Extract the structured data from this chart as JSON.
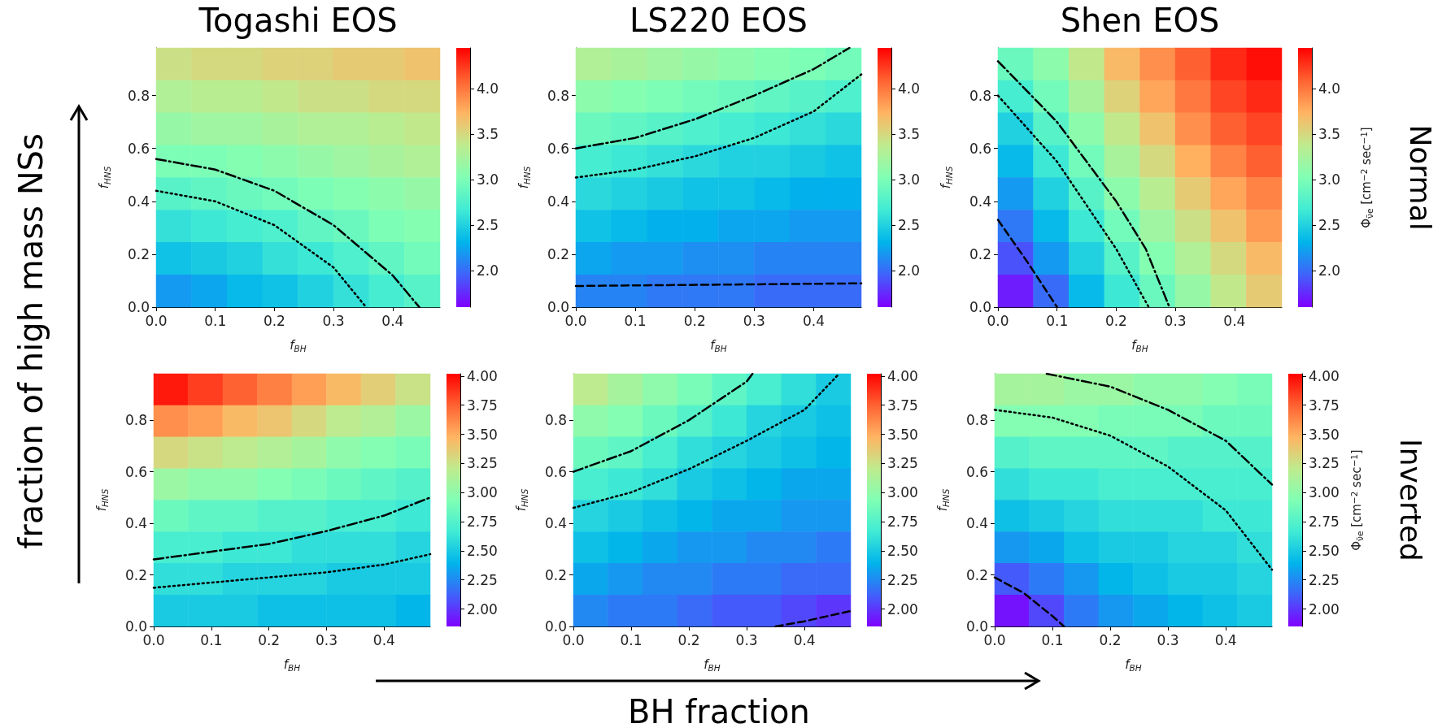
{
  "chart_data": [
    {
      "type": "heatmap",
      "title": "Togashi EOS",
      "xlabel": "f$_{BH}$",
      "ylabel": "f$_{HNS}$",
      "xlim": [
        0,
        0.48
      ],
      "ylim": [
        0,
        0.98
      ],
      "xticks": [
        {
          "value": 0,
          "label": "0.0"
        },
        {
          "value": 0.1,
          "label": "0.1"
        },
        {
          "value": 0.2,
          "label": "0.2"
        },
        {
          "value": 0.3,
          "label": "0.3"
        },
        {
          "value": 0.4,
          "label": "0.4"
        }
      ],
      "yticks": [
        {
          "value": 0,
          "label": "0.0"
        },
        {
          "value": 0.2,
          "label": "0.2"
        },
        {
          "value": 0.4,
          "label": "0.4"
        },
        {
          "value": 0.6,
          "label": "0.6"
        },
        {
          "value": 0.8,
          "label": "0.8"
        }
      ],
      "clim": [
        1.6,
        4.45
      ],
      "cticks": [
        {
          "value": 2,
          "label": "2.0"
        },
        2.5,
        {
          "value": 3,
          "label": "3.0"
        },
        3.5,
        {
          "value": 4,
          "label": "4.0"
        }
      ],
      "cells": [
        [
          3.45,
          3.5,
          3.5,
          3.55,
          3.55,
          3.6,
          3.6,
          3.65
        ],
        [
          3.3,
          3.35,
          3.35,
          3.4,
          3.45,
          3.45,
          3.5,
          3.5
        ],
        [
          3.15,
          3.2,
          3.2,
          3.25,
          3.3,
          3.3,
          3.35,
          3.4
        ],
        [
          3.0,
          3.0,
          3.05,
          3.1,
          3.15,
          3.2,
          3.25,
          3.3
        ],
        [
          2.8,
          2.85,
          2.9,
          2.95,
          3.0,
          3.05,
          3.1,
          3.15
        ],
        [
          2.6,
          2.65,
          2.7,
          2.75,
          2.85,
          2.9,
          3.0,
          3.05
        ],
        [
          2.4,
          2.45,
          2.5,
          2.6,
          2.65,
          2.75,
          2.85,
          2.95
        ],
        [
          2.2,
          2.25,
          2.35,
          2.4,
          2.5,
          2.6,
          2.7,
          2.8
        ]
      ],
      "series": [
        {
          "type": "line",
          "color": "#000000",
          "line_style": "dashdot",
          "x": [
            0,
            0.1,
            0.2,
            0.3,
            0.4,
            0.445
          ],
          "values": [
            0.56,
            0.52,
            0.44,
            0.31,
            0.12,
            0
          ]
        },
        {
          "type": "line",
          "color": "#000000",
          "line_style": "dotted",
          "x": [
            0,
            0.1,
            0.2,
            0.3,
            0.355
          ],
          "values": [
            0.44,
            0.4,
            0.31,
            0.15,
            0
          ]
        }
      ]
    },
    {
      "type": "heatmap",
      "title": "LS220 EOS",
      "xlabel": "f$_{BH}$",
      "ylabel": "f$_{HNS}$",
      "xlim": [
        0,
        0.48
      ],
      "ylim": [
        0,
        0.98
      ],
      "xticks": [
        {
          "value": 0,
          "label": "0.0"
        },
        {
          "value": 0.1,
          "label": "0.1"
        },
        {
          "value": 0.2,
          "label": "0.2"
        },
        {
          "value": 0.3,
          "label": "0.3"
        },
        {
          "value": 0.4,
          "label": "0.4"
        }
      ],
      "yticks": [
        {
          "value": 0,
          "label": "0.0"
        },
        {
          "value": 0.2,
          "label": "0.2"
        },
        {
          "value": 0.4,
          "label": "0.4"
        },
        {
          "value": 0.6,
          "label": "0.6"
        },
        {
          "value": 0.8,
          "label": "0.8"
        }
      ],
      "clim": [
        1.6,
        4.45
      ],
      "cticks": [
        {
          "value": 2,
          "label": "2.0"
        },
        2.5,
        {
          "value": 3,
          "label": "3.0"
        },
        3.5,
        {
          "value": 4,
          "label": "4.0"
        }
      ],
      "cells": [
        [
          3.3,
          3.25,
          3.2,
          3.15,
          3.1,
          3.05,
          3.0,
          2.95
        ],
        [
          3.1,
          3.05,
          3.0,
          2.95,
          2.9,
          2.85,
          2.8,
          2.75
        ],
        [
          2.9,
          2.85,
          2.8,
          2.75,
          2.7,
          2.65,
          2.6,
          2.55
        ],
        [
          2.7,
          2.65,
          2.6,
          2.55,
          2.5,
          2.5,
          2.45,
          2.4
        ],
        [
          2.55,
          2.5,
          2.45,
          2.4,
          2.4,
          2.35,
          2.3,
          2.3
        ],
        [
          2.4,
          2.35,
          2.3,
          2.3,
          2.25,
          2.25,
          2.2,
          2.2
        ],
        [
          2.25,
          2.2,
          2.2,
          2.15,
          2.15,
          2.1,
          2.1,
          2.1
        ],
        [
          2.1,
          2.1,
          2.05,
          2.05,
          2.05,
          2.0,
          2.0,
          2.0
        ]
      ],
      "series": [
        {
          "type": "line",
          "color": "#000000",
          "line_style": "dashdot",
          "x": [
            0,
            0.1,
            0.2,
            0.3,
            0.4,
            0.46
          ],
          "values": [
            0.6,
            0.64,
            0.71,
            0.8,
            0.9,
            0.98
          ]
        },
        {
          "type": "line",
          "color": "#000000",
          "line_style": "dotted",
          "x": [
            0,
            0.1,
            0.2,
            0.3,
            0.4,
            0.48
          ],
          "values": [
            0.49,
            0.52,
            0.57,
            0.64,
            0.74,
            0.88
          ]
        },
        {
          "type": "line",
          "color": "#000000",
          "line_style": "dashed",
          "x": [
            0,
            0.48
          ],
          "values": [
            0.08,
            0.09
          ]
        }
      ]
    },
    {
      "type": "heatmap",
      "title": "Shen EOS",
      "xlabel": "f$_{BH}$",
      "ylabel": "f$_{HNS}$",
      "clabel": "Φ$_{ν̄e}$ [cm$^{−2}$ sec$^{−1}$]",
      "annotations": [
        "Normal"
      ],
      "xlim": [
        0,
        0.48
      ],
      "ylim": [
        0,
        0.98
      ],
      "xticks": [
        {
          "value": 0,
          "label": "0.0"
        },
        {
          "value": 0.1,
          "label": "0.1"
        },
        {
          "value": 0.2,
          "label": "0.2"
        },
        {
          "value": 0.3,
          "label": "0.3"
        },
        {
          "value": 0.4,
          "label": "0.4"
        }
      ],
      "yticks": [
        {
          "value": 0,
          "label": "0.0"
        },
        {
          "value": 0.2,
          "label": "0.2"
        },
        {
          "value": 0.4,
          "label": "0.4"
        },
        {
          "value": 0.6,
          "label": "0.6"
        },
        {
          "value": 0.8,
          "label": "0.8"
        }
      ],
      "clim": [
        1.6,
        4.45
      ],
      "cticks": [
        {
          "value": 2,
          "label": "2.0"
        },
        2.5,
        {
          "value": 3,
          "label": "3.0"
        },
        3.5,
        {
          "value": 4,
          "label": "4.0"
        }
      ],
      "cells": [
        [
          2.9,
          3.1,
          3.4,
          3.7,
          3.9,
          4.1,
          4.3,
          4.4
        ],
        [
          2.7,
          2.95,
          3.25,
          3.55,
          3.8,
          4.0,
          4.2,
          4.3
        ],
        [
          2.5,
          2.8,
          3.1,
          3.4,
          3.65,
          3.9,
          4.1,
          4.2
        ],
        [
          2.35,
          2.65,
          2.95,
          3.25,
          3.5,
          3.75,
          3.95,
          4.1
        ],
        [
          2.2,
          2.5,
          2.8,
          3.1,
          3.35,
          3.6,
          3.8,
          3.95
        ],
        [
          2.05,
          2.35,
          2.65,
          2.95,
          3.2,
          3.45,
          3.65,
          3.85
        ],
        [
          1.9,
          2.2,
          2.5,
          2.8,
          3.05,
          3.3,
          3.5,
          3.7
        ],
        [
          1.7,
          2.0,
          2.35,
          2.65,
          2.9,
          3.15,
          3.4,
          3.6
        ]
      ],
      "series": [
        {
          "type": "line",
          "color": "#000000",
          "line_style": "dashdot",
          "x": [
            0,
            0.1,
            0.2,
            0.25,
            0.29
          ],
          "values": [
            0.93,
            0.7,
            0.4,
            0.22,
            0
          ]
        },
        {
          "type": "line",
          "color": "#000000",
          "line_style": "dotted",
          "x": [
            0,
            0.1,
            0.2,
            0.255
          ],
          "values": [
            0.8,
            0.55,
            0.22,
            0
          ]
        },
        {
          "type": "line",
          "color": "#000000",
          "line_style": "dashed",
          "x": [
            0,
            0.05,
            0.1
          ],
          "values": [
            0.33,
            0.17,
            0
          ]
        }
      ]
    },
    {
      "type": "heatmap",
      "xlabel": "f$_{BH}$",
      "ylabel": "f$_{HNS}$",
      "annotations": [
        "fraction of high mass NSs"
      ],
      "xlim": [
        0,
        0.48
      ],
      "ylim": [
        0,
        0.98
      ],
      "xticks": [
        {
          "value": 0,
          "label": "0.0"
        },
        {
          "value": 0.1,
          "label": "0.1"
        },
        {
          "value": 0.2,
          "label": "0.2"
        },
        {
          "value": 0.3,
          "label": "0.3"
        },
        {
          "value": 0.4,
          "label": "0.4"
        }
      ],
      "yticks": [
        {
          "value": 0,
          "label": "0.0"
        },
        {
          "value": 0.2,
          "label": "0.2"
        },
        {
          "value": 0.4,
          "label": "0.4"
        },
        {
          "value": 0.6,
          "label": "0.6"
        },
        {
          "value": 0.8,
          "label": "0.8"
        }
      ],
      "clim": [
        1.85,
        4.02
      ],
      "cticks": [
        {
          "value": 2,
          "label": "2.00"
        },
        2.25,
        {
          "value": 2.5,
          "label": "2.50"
        },
        2.75,
        {
          "value": 3,
          "label": "3.00"
        },
        3.25,
        {
          "value": 3.5,
          "label": "3.50"
        },
        3.75,
        {
          "value": 4,
          "label": "4.00"
        }
      ],
      "cells": [
        [
          3.95,
          3.85,
          3.75,
          3.65,
          3.55,
          3.45,
          3.35,
          3.25
        ],
        [
          3.6,
          3.55,
          3.45,
          3.4,
          3.3,
          3.2,
          3.15,
          3.05
        ],
        [
          3.3,
          3.25,
          3.2,
          3.15,
          3.1,
          3.0,
          2.95,
          2.9
        ],
        [
          3.05,
          3.0,
          3.0,
          2.95,
          2.9,
          2.85,
          2.8,
          2.75
        ],
        [
          2.85,
          2.8,
          2.8,
          2.75,
          2.75,
          2.7,
          2.7,
          2.65
        ],
        [
          2.7,
          2.7,
          2.65,
          2.65,
          2.6,
          2.6,
          2.6,
          2.55
        ],
        [
          2.6,
          2.6,
          2.55,
          2.55,
          2.55,
          2.5,
          2.5,
          2.5
        ],
        [
          2.5,
          2.5,
          2.5,
          2.45,
          2.45,
          2.45,
          2.45,
          2.4
        ]
      ],
      "series": [
        {
          "type": "line",
          "color": "#000000",
          "line_style": "dashdot",
          "x": [
            0,
            0.1,
            0.2,
            0.3,
            0.4,
            0.48
          ],
          "values": [
            0.26,
            0.29,
            0.32,
            0.37,
            0.43,
            0.5
          ]
        },
        {
          "type": "line",
          "color": "#000000",
          "line_style": "dotted",
          "x": [
            0,
            0.1,
            0.2,
            0.3,
            0.4,
            0.48
          ],
          "values": [
            0.15,
            0.17,
            0.19,
            0.21,
            0.24,
            0.28
          ]
        }
      ]
    },
    {
      "type": "heatmap",
      "xlabel": "f$_{BH}$",
      "ylabel": "f$_{HNS}$",
      "annotations": [
        "BH fraction"
      ],
      "xlim": [
        0,
        0.48
      ],
      "ylim": [
        0,
        0.98
      ],
      "xticks": [
        {
          "value": 0,
          "label": "0.0"
        },
        {
          "value": 0.1,
          "label": "0.1"
        },
        {
          "value": 0.2,
          "label": "0.2"
        },
        {
          "value": 0.3,
          "label": "0.3"
        },
        {
          "value": 0.4,
          "label": "0.4"
        }
      ],
      "yticks": [
        {
          "value": 0,
          "label": "0.0"
        },
        {
          "value": 0.2,
          "label": "0.2"
        },
        {
          "value": 0.4,
          "label": "0.4"
        },
        {
          "value": 0.6,
          "label": "0.6"
        },
        {
          "value": 0.8,
          "label": "0.8"
        }
      ],
      "clim": [
        1.85,
        4.02
      ],
      "cticks": [
        {
          "value": 2,
          "label": "2.00"
        },
        2.25,
        {
          "value": 2.5,
          "label": "2.50"
        },
        2.75,
        {
          "value": 3,
          "label": "3.00"
        },
        3.25,
        {
          "value": 3.5,
          "label": "3.50"
        },
        3.75,
        {
          "value": 4,
          "label": "4.00"
        }
      ],
      "cells": [
        [
          3.2,
          3.1,
          3.0,
          2.9,
          2.8,
          2.7,
          2.6,
          2.5
        ],
        [
          3.0,
          2.95,
          2.85,
          2.75,
          2.65,
          2.55,
          2.5,
          2.45
        ],
        [
          2.85,
          2.8,
          2.7,
          2.6,
          2.55,
          2.5,
          2.45,
          2.4
        ],
        [
          2.7,
          2.65,
          2.6,
          2.5,
          2.45,
          2.4,
          2.35,
          2.35
        ],
        [
          2.55,
          2.5,
          2.45,
          2.4,
          2.35,
          2.35,
          2.3,
          2.3
        ],
        [
          2.45,
          2.4,
          2.35,
          2.3,
          2.3,
          2.25,
          2.25,
          2.2
        ],
        [
          2.35,
          2.3,
          2.25,
          2.25,
          2.2,
          2.2,
          2.15,
          2.15
        ],
        [
          2.25,
          2.2,
          2.2,
          2.15,
          2.1,
          2.1,
          2.05,
          2.0
        ]
      ],
      "series": [
        {
          "type": "line",
          "color": "#000000",
          "line_style": "dashdot",
          "x": [
            0,
            0.1,
            0.2,
            0.3,
            0.31
          ],
          "values": [
            0.6,
            0.68,
            0.8,
            0.95,
            0.98
          ]
        },
        {
          "type": "line",
          "color": "#000000",
          "line_style": "dotted",
          "x": [
            0,
            0.1,
            0.2,
            0.3,
            0.4,
            0.46
          ],
          "values": [
            0.46,
            0.52,
            0.61,
            0.72,
            0.84,
            0.98
          ]
        },
        {
          "type": "line",
          "color": "#000000",
          "line_style": "dashed",
          "x": [
            0.35,
            0.4,
            0.48
          ],
          "values": [
            0,
            0.02,
            0.06
          ]
        }
      ]
    },
    {
      "type": "heatmap",
      "xlabel": "f$_{BH}$",
      "ylabel": "f$_{HNS}$",
      "clabel": "Φ$_{ν̄e}$ [cm$^{−2}$ sec$^{−1}$]",
      "annotations": [
        "Inverted"
      ],
      "xlim": [
        0,
        0.48
      ],
      "ylim": [
        0,
        0.98
      ],
      "xticks": [
        {
          "value": 0,
          "label": "0.0"
        },
        {
          "value": 0.1,
          "label": "0.1"
        },
        {
          "value": 0.2,
          "label": "0.2"
        },
        {
          "value": 0.3,
          "label": "0.3"
        },
        {
          "value": 0.4,
          "label": "0.4"
        }
      ],
      "yticks": [
        {
          "value": 0,
          "label": "0.0"
        },
        {
          "value": 0.2,
          "label": "0.2"
        },
        {
          "value": 0.4,
          "label": "0.4"
        },
        {
          "value": 0.6,
          "label": "0.6"
        },
        {
          "value": 0.8,
          "label": "0.8"
        }
      ],
      "clim": [
        1.85,
        4.02
      ],
      "cticks": [
        {
          "value": 2,
          "label": "2.00"
        },
        2.25,
        {
          "value": 2.5,
          "label": "2.50"
        },
        2.75,
        {
          "value": 3,
          "label": "3.00"
        },
        3.25,
        {
          "value": 3.5,
          "label": "3.50"
        },
        3.75,
        {
          "value": 4,
          "label": "4.00"
        }
      ],
      "cells": [
        [
          3.1,
          3.1,
          3.05,
          3.05,
          3.0,
          3.0,
          2.95,
          2.9
        ],
        [
          2.95,
          2.95,
          2.95,
          2.9,
          2.9,
          2.9,
          2.85,
          2.85
        ],
        [
          2.75,
          2.8,
          2.8,
          2.8,
          2.8,
          2.75,
          2.75,
          2.75
        ],
        [
          2.6,
          2.65,
          2.65,
          2.7,
          2.7,
          2.7,
          2.7,
          2.7
        ],
        [
          2.45,
          2.5,
          2.55,
          2.6,
          2.6,
          2.6,
          2.65,
          2.65
        ],
        [
          2.3,
          2.35,
          2.45,
          2.5,
          2.5,
          2.55,
          2.55,
          2.6
        ],
        [
          2.1,
          2.2,
          2.3,
          2.4,
          2.45,
          2.5,
          2.5,
          2.55
        ],
        [
          1.9,
          2.05,
          2.2,
          2.3,
          2.35,
          2.4,
          2.45,
          2.5
        ]
      ],
      "series": [
        {
          "type": "line",
          "color": "#000000",
          "line_style": "dashdot",
          "x": [
            0.09,
            0.2,
            0.3,
            0.4,
            0.48
          ],
          "values": [
            0.98,
            0.93,
            0.84,
            0.72,
            0.55
          ]
        },
        {
          "type": "line",
          "color": "#000000",
          "line_style": "dotted",
          "x": [
            0,
            0.1,
            0.2,
            0.3,
            0.4,
            0.48
          ],
          "values": [
            0.84,
            0.81,
            0.74,
            0.62,
            0.45,
            0.22
          ]
        },
        {
          "type": "line",
          "color": "#000000",
          "line_style": "dashed",
          "x": [
            0,
            0.05,
            0.1,
            0.12
          ],
          "values": [
            0.19,
            0.13,
            0.04,
            0
          ]
        }
      ]
    }
  ]
}
